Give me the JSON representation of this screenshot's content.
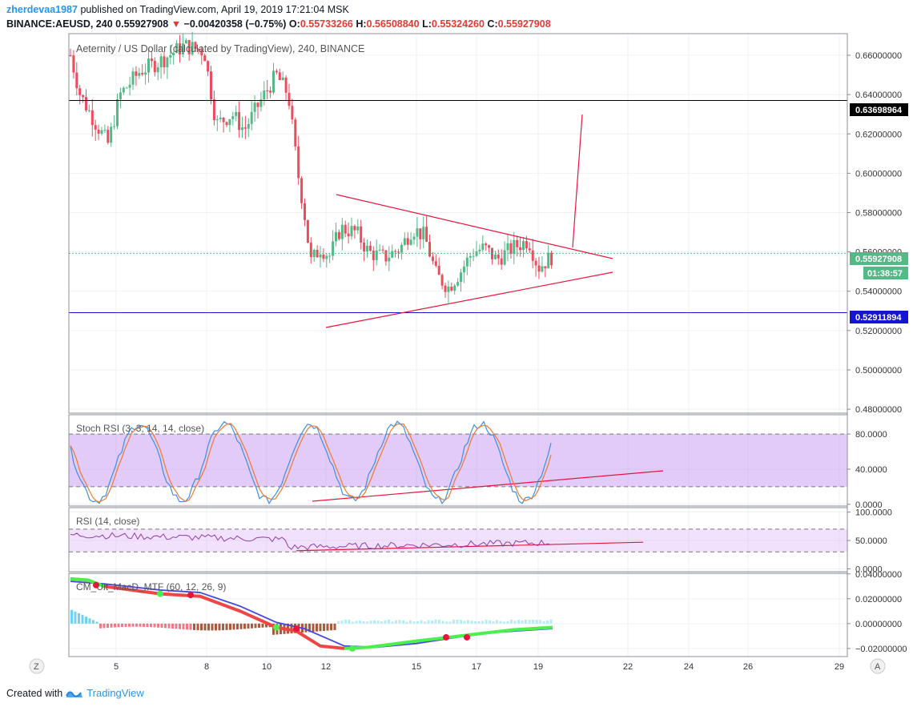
{
  "header": {
    "author": "zherdevaa1987",
    "published_text": "published on TradingView.com, April 19, 2019 17:21:04 MSK",
    "symbol": "BINANCE:AEUSD, 240",
    "price": "0.55927908",
    "change": "−0.00420358 (−0.75%)",
    "o_label": "O:",
    "o": "0.55733266",
    "h_label": "H:",
    "h": "0.56508840",
    "l_label": "L:",
    "l": "0.55324260",
    "c_label": "C:",
    "c": "0.55927908"
  },
  "main_pane": {
    "title": "Aeternity / US Dollar (calculated by TradingView), 240, BINANCE",
    "price_ticks": [
      "0.66000000",
      "0.64000000",
      "0.62000000",
      "0.60000000",
      "0.58000000",
      "0.56000000",
      "0.54000000",
      "0.52000000",
      "0.50000000",
      "0.48000000"
    ],
    "price_tick_values": [
      0.66,
      0.64,
      0.62,
      0.6,
      0.58,
      0.56,
      0.54,
      0.52,
      0.5,
      0.48
    ],
    "price_range": [
      0.478,
      0.671
    ],
    "labels": {
      "resistance": "0.63698964",
      "resistance_value": 0.63699,
      "current": "0.55927908",
      "current_value": 0.55928,
      "countdown": "01:38:57",
      "support": "0.52911894",
      "support_value": 0.52912
    },
    "colors": {
      "up": "#53b987",
      "down": "#eb4d5c",
      "trend": "#e8143c",
      "support": "#1414d2",
      "current": "#53b987"
    }
  },
  "stoch_pane": {
    "title": "Stoch RSI (3, 3, 14, 14, close)",
    "ticks": [
      "80.0000",
      "40.0000",
      "0.0000"
    ],
    "tick_values": [
      80,
      40,
      0
    ],
    "range": [
      -2,
      102
    ],
    "band": [
      20,
      80
    ]
  },
  "rsi_pane": {
    "title": "RSI (14, close)",
    "ticks": [
      "100.0000",
      "50.0000",
      "0.0000"
    ],
    "tick_values": [
      100,
      50,
      0
    ],
    "range": [
      -5,
      108
    ],
    "band": [
      30,
      70
    ]
  },
  "macd_pane": {
    "title": "CM_Ult_MacD_MTF (60, 12, 26, 9)",
    "ticks": [
      "0.04000000",
      "0.02000000",
      "0.00000000",
      "−0.02000000"
    ],
    "tick_values": [
      0.04,
      0.02,
      0.0,
      -0.02
    ],
    "range": [
      -0.0265,
      0.0405
    ]
  },
  "time_axis": {
    "labels": [
      "5",
      "8",
      "10",
      "12",
      "15",
      "17",
      "19",
      "22",
      "24",
      "26",
      "29"
    ],
    "z_button": "Z",
    "a_button": "A"
  },
  "footer": {
    "created_with": "Created with",
    "brand": "TradingView"
  }
}
